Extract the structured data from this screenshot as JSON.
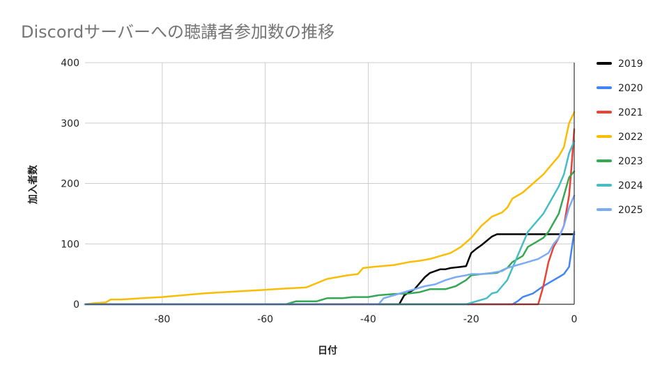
{
  "chart_data": {
    "type": "line",
    "title": "Discordサーバーへの聴講者参加数の推移",
    "xlabel": "日付",
    "ylabel": "加入者数",
    "xlim": [
      -95,
      0
    ],
    "ylim": [
      0,
      400
    ],
    "xticks": [
      -80,
      -60,
      -40,
      -20,
      0
    ],
    "yticks": [
      0,
      100,
      200,
      300,
      400
    ],
    "grid": true,
    "legend_position": "right",
    "series": [
      {
        "name": "2019",
        "color": "#000000",
        "points": [
          [
            -95,
            0
          ],
          [
            -34,
            0
          ],
          [
            -33,
            15
          ],
          [
            -32,
            20
          ],
          [
            -31,
            25
          ],
          [
            -30,
            35
          ],
          [
            -29,
            45
          ],
          [
            -28,
            52
          ],
          [
            -27,
            55
          ],
          [
            -26,
            58
          ],
          [
            -25,
            58
          ],
          [
            -24,
            60
          ],
          [
            -22,
            62
          ],
          [
            -21,
            63
          ],
          [
            -20,
            85
          ],
          [
            -19,
            92
          ],
          [
            -18,
            98
          ],
          [
            -17,
            105
          ],
          [
            -16,
            112
          ],
          [
            -15,
            116
          ],
          [
            -10,
            116
          ],
          [
            0,
            116
          ]
        ]
      },
      {
        "name": "2020",
        "color": "#4285f4",
        "points": [
          [
            -95,
            0
          ],
          [
            -12,
            0
          ],
          [
            -11,
            5
          ],
          [
            -10,
            12
          ],
          [
            -8,
            18
          ],
          [
            -6,
            30
          ],
          [
            -5,
            35
          ],
          [
            -4,
            40
          ],
          [
            -3,
            45
          ],
          [
            -2,
            50
          ],
          [
            -1,
            62
          ],
          [
            0,
            120
          ]
        ]
      },
      {
        "name": "2021",
        "color": "#ea4335",
        "points": [
          [
            -95,
            0
          ],
          [
            -7,
            0
          ],
          [
            -6,
            30
          ],
          [
            -5,
            70
          ],
          [
            -4,
            95
          ],
          [
            -3,
            110
          ],
          [
            -2,
            130
          ],
          [
            -1,
            180
          ],
          [
            -0.5,
            230
          ],
          [
            0,
            290
          ]
        ]
      },
      {
        "name": "2022",
        "color": "#fbbc04",
        "points": [
          [
            -95,
            0
          ],
          [
            -93,
            2
          ],
          [
            -91,
            3
          ],
          [
            -90,
            8
          ],
          [
            -88,
            8
          ],
          [
            -86,
            9
          ],
          [
            -84,
            10
          ],
          [
            -80,
            12
          ],
          [
            -76,
            15
          ],
          [
            -72,
            18
          ],
          [
            -68,
            20
          ],
          [
            -64,
            22
          ],
          [
            -60,
            24
          ],
          [
            -56,
            26
          ],
          [
            -52,
            28
          ],
          [
            -50,
            35
          ],
          [
            -48,
            42
          ],
          [
            -46,
            45
          ],
          [
            -44,
            48
          ],
          [
            -42,
            50
          ],
          [
            -41,
            60
          ],
          [
            -39,
            62
          ],
          [
            -35,
            65
          ],
          [
            -32,
            70
          ],
          [
            -30,
            72
          ],
          [
            -28,
            75
          ],
          [
            -26,
            80
          ],
          [
            -24,
            85
          ],
          [
            -22,
            95
          ],
          [
            -20,
            110
          ],
          [
            -18,
            130
          ],
          [
            -16,
            145
          ],
          [
            -14,
            152
          ],
          [
            -13,
            160
          ],
          [
            -12,
            175
          ],
          [
            -10,
            185
          ],
          [
            -8,
            200
          ],
          [
            -6,
            215
          ],
          [
            -4,
            235
          ],
          [
            -3,
            245
          ],
          [
            -2,
            260
          ],
          [
            -1,
            300
          ],
          [
            0,
            318
          ]
        ]
      },
      {
        "name": "2023",
        "color": "#34a853",
        "points": [
          [
            -95,
            0
          ],
          [
            -56,
            0
          ],
          [
            -54,
            5
          ],
          [
            -50,
            5
          ],
          [
            -48,
            10
          ],
          [
            -45,
            10
          ],
          [
            -43,
            12
          ],
          [
            -40,
            12
          ],
          [
            -38,
            15
          ],
          [
            -35,
            17
          ],
          [
            -32,
            18
          ],
          [
            -30,
            20
          ],
          [
            -28,
            25
          ],
          [
            -25,
            25
          ],
          [
            -23,
            30
          ],
          [
            -21,
            40
          ],
          [
            -20,
            48
          ],
          [
            -18,
            50
          ],
          [
            -15,
            52
          ],
          [
            -13,
            60
          ],
          [
            -12,
            70
          ],
          [
            -10,
            80
          ],
          [
            -9,
            95
          ],
          [
            -8,
            100
          ],
          [
            -6,
            110
          ],
          [
            -5,
            120
          ],
          [
            -4,
            135
          ],
          [
            -3,
            150
          ],
          [
            -2,
            180
          ],
          [
            -1,
            210
          ],
          [
            0,
            220
          ]
        ]
      },
      {
        "name": "2024",
        "color": "#46bdc6",
        "points": [
          [
            -95,
            0
          ],
          [
            -21,
            0
          ],
          [
            -19,
            5
          ],
          [
            -17,
            10
          ],
          [
            -16,
            18
          ],
          [
            -15,
            20
          ],
          [
            -14,
            30
          ],
          [
            -13,
            40
          ],
          [
            -12,
            60
          ],
          [
            -11,
            80
          ],
          [
            -10,
            100
          ],
          [
            -9,
            120
          ],
          [
            -8,
            130
          ],
          [
            -6,
            150
          ],
          [
            -5,
            165
          ],
          [
            -4,
            180
          ],
          [
            -3,
            195
          ],
          [
            -2,
            215
          ],
          [
            -1,
            250
          ],
          [
            0,
            270
          ]
        ]
      },
      {
        "name": "2025",
        "color": "#7baaf7",
        "points": [
          [
            -95,
            0
          ],
          [
            -38,
            0
          ],
          [
            -37,
            10
          ],
          [
            -35,
            15
          ],
          [
            -33,
            20
          ],
          [
            -31,
            25
          ],
          [
            -29,
            30
          ],
          [
            -27,
            33
          ],
          [
            -25,
            40
          ],
          [
            -23,
            45
          ],
          [
            -21,
            48
          ],
          [
            -20,
            50
          ],
          [
            -18,
            50
          ],
          [
            -16,
            52
          ],
          [
            -14,
            55
          ],
          [
            -13,
            60
          ],
          [
            -11,
            65
          ],
          [
            -9,
            70
          ],
          [
            -7,
            75
          ],
          [
            -5,
            85
          ],
          [
            -4,
            100
          ],
          [
            -3,
            110
          ],
          [
            -2,
            130
          ],
          [
            -1,
            160
          ],
          [
            0,
            180
          ]
        ]
      }
    ]
  }
}
